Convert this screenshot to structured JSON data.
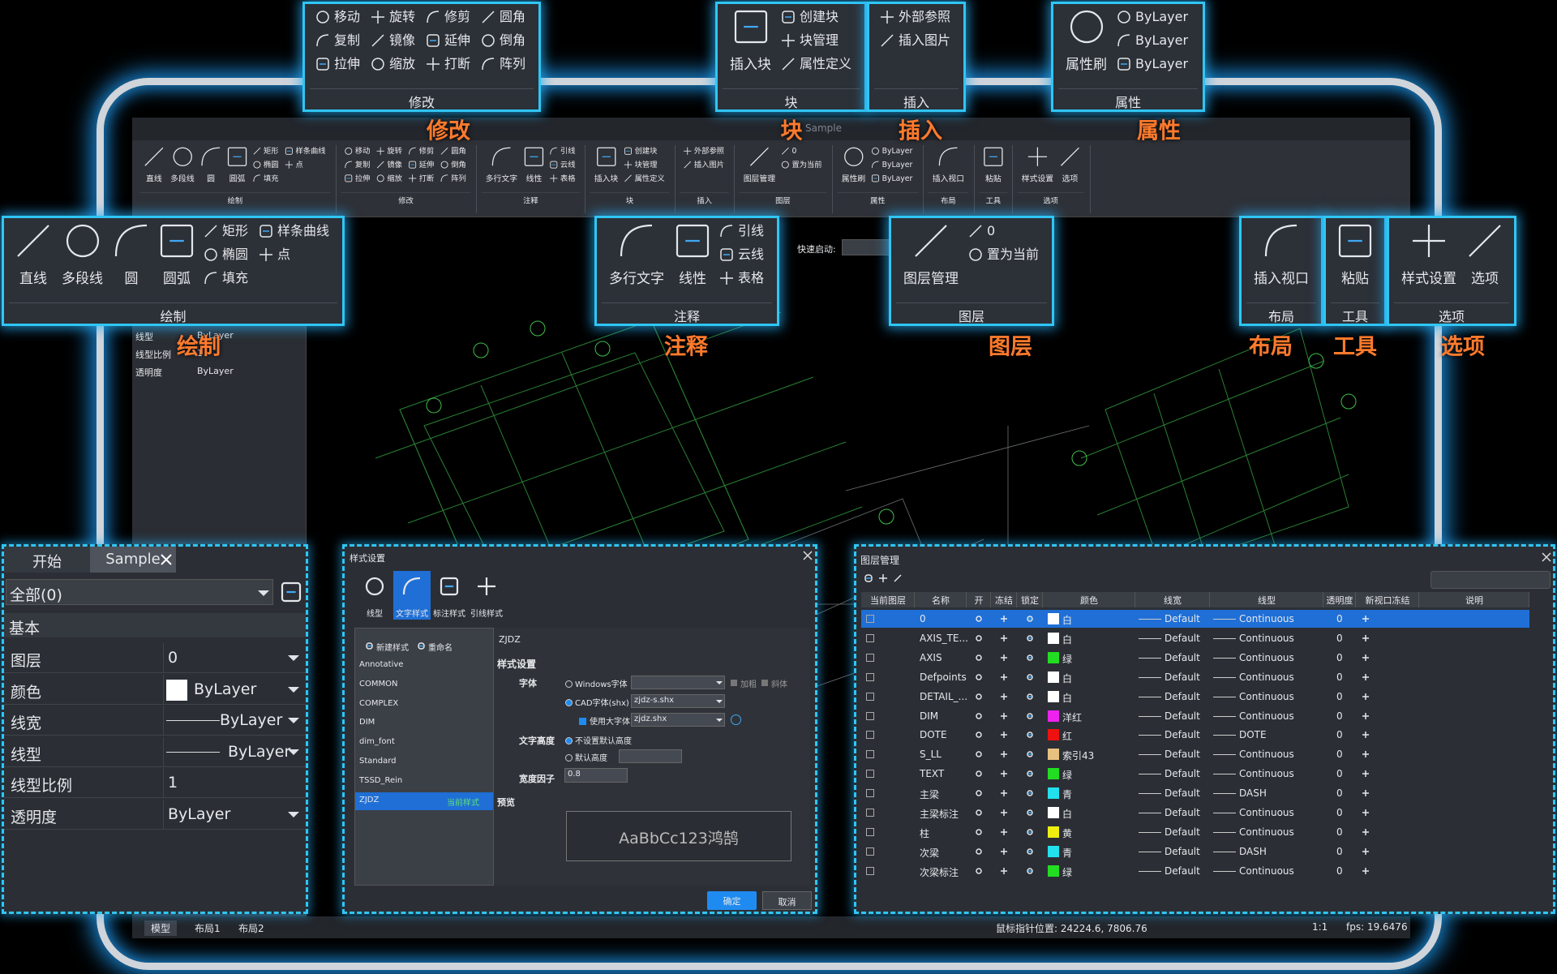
{
  "window": {
    "title": "Sample",
    "quick_launch": "快速启动:"
  },
  "ribbon": [
    {
      "title": "绘制",
      "large": [
        "直线",
        "多段线",
        "圆",
        "圆弧"
      ],
      "small": [
        "矩形",
        "椭圆",
        "填充",
        "样条曲线",
        "点"
      ]
    },
    {
      "title": "修改",
      "large": [],
      "small": [
        "移动",
        "复制",
        "拉伸",
        "旋转",
        "镜像",
        "缩放",
        "修剪",
        "延伸",
        "打断",
        "圆角",
        "倒角",
        "阵列"
      ]
    },
    {
      "title": "注释",
      "large": [
        "多行文字",
        "线性"
      ],
      "small": [
        "引线",
        "云线",
        "表格"
      ]
    },
    {
      "title": "块",
      "large": [
        "插入块"
      ],
      "small": [
        "创建块",
        "块管理",
        "属性定义"
      ]
    },
    {
      "title": "插入",
      "large": [],
      "small": [
        "外部参照",
        "插入图片"
      ]
    },
    {
      "title": "图层",
      "large": [
        "图层管理"
      ],
      "small": [
        "0",
        "置为当前"
      ]
    },
    {
      "title": "属性",
      "large": [
        "属性刷"
      ],
      "small": [
        "ByLayer",
        "ByLayer",
        "ByLayer"
      ]
    },
    {
      "title": "布局",
      "large": [
        "插入视口"
      ],
      "small": []
    },
    {
      "title": "工具",
      "large": [
        "粘贴"
      ],
      "small": []
    },
    {
      "title": "选项",
      "large": [
        "样式设置",
        "选项"
      ],
      "small": []
    }
  ],
  "properties": {
    "tabs": [
      "开始",
      "Sample"
    ],
    "filter": "全部(0)",
    "section": "基本",
    "rows": [
      [
        "图层",
        "0"
      ],
      [
        "颜色",
        "ByLayer"
      ],
      [
        "线宽",
        "ByLayer"
      ],
      [
        "线型",
        "ByLayer"
      ],
      [
        "线型比例",
        1
      ],
      [
        "透明度",
        "ByLayer"
      ]
    ]
  },
  "style_dialog": {
    "title": "样式设置",
    "tabs": [
      "线型",
      "文字样式",
      "标注样式",
      "引线样式"
    ],
    "actions": [
      "新建样式",
      "重命名"
    ],
    "styles": [
      "Annotative",
      "COMMON",
      "COMPLEX",
      "DIM",
      "dim_font",
      "Standard",
      "TSSD_Rein",
      "ZJDZ"
    ],
    "current_badge": "当前样式",
    "current": "ZJDZ",
    "section": "样式设置",
    "font_label": "字体",
    "windows_font": "Windows字体",
    "bold": "加粗",
    "italic": "斜体",
    "cad_font": "CAD字体(shx)",
    "cad_font_value": "zjdz-s.shx",
    "bigfont": "使用大字体",
    "bigfont_value": "zjdz.shx",
    "height_label": "文字高度",
    "no_default_height": "不设置默认高度",
    "default_height": "默认高度",
    "width_label": "宽度因子",
    "width_value": 0.8,
    "preview_label": "预览",
    "preview": "AaBbCc123鸿鹄",
    "ok": "确定",
    "cancel": "取消"
  },
  "layer_manager": {
    "title": "图层管理",
    "columns": [
      "当前图层",
      "名称",
      "开",
      "冻结",
      "锁定",
      "颜色",
      "线宽",
      "线型",
      "透明度",
      "新视口冻结",
      "说明"
    ],
    "rows": [
      {
        "name": "0",
        "color_name": "白",
        "color": "#ffffff",
        "lineweight": "Default",
        "linetype": "Continuous",
        "transparency": 0
      },
      {
        "name": "AXIS_TE...",
        "color_name": "白",
        "color": "#ffffff",
        "lineweight": "Default",
        "linetype": "Continuous",
        "transparency": 0
      },
      {
        "name": "AXIS",
        "color_name": "绿",
        "color": "#22dd22",
        "lineweight": "Default",
        "linetype": "Continuous",
        "transparency": 0
      },
      {
        "name": "Defpoints",
        "color_name": "白",
        "color": "#ffffff",
        "lineweight": "Default",
        "linetype": "Continuous",
        "transparency": 0
      },
      {
        "name": "DETAIL_...",
        "color_name": "白",
        "color": "#ffffff",
        "lineweight": "Default",
        "linetype": "Continuous",
        "transparency": 0
      },
      {
        "name": "DIM",
        "color_name": "洋红",
        "color": "#ee22ee",
        "lineweight": "Default",
        "linetype": "Continuous",
        "transparency": 0
      },
      {
        "name": "DOTE",
        "color_name": "红",
        "color": "#ee1111",
        "lineweight": "Default",
        "linetype": "DOTE",
        "transparency": 0
      },
      {
        "name": "S_LL",
        "color_name": "索引43",
        "color": "#e8c080",
        "lineweight": "Default",
        "linetype": "Continuous",
        "transparency": 0
      },
      {
        "name": "TEXT",
        "color_name": "绿",
        "color": "#22dd22",
        "lineweight": "Default",
        "linetype": "Continuous",
        "transparency": 0
      },
      {
        "name": "主梁",
        "color_name": "青",
        "color": "#22e0ee",
        "lineweight": "Default",
        "linetype": "DASH",
        "transparency": 0
      },
      {
        "name": "主梁标注",
        "color_name": "白",
        "color": "#ffffff",
        "lineweight": "Default",
        "linetype": "Continuous",
        "transparency": 0
      },
      {
        "name": "柱",
        "color_name": "黄",
        "color": "#eeee11",
        "lineweight": "Default",
        "linetype": "Continuous",
        "transparency": 0
      },
      {
        "name": "次梁",
        "color_name": "青",
        "color": "#22e0ee",
        "lineweight": "Default",
        "linetype": "DASH",
        "transparency": 0
      },
      {
        "name": "次梁标注",
        "color_name": "绿",
        "color": "#22dd22",
        "lineweight": "Default",
        "linetype": "Continuous",
        "transparency": 0
      }
    ]
  },
  "status_bar": {
    "tabs": [
      "模型",
      "布局1",
      "布局2"
    ],
    "pointer": "鼠标指针位置: 24224.6, 7806.76",
    "scale": "1:1",
    "fps": "fps: 19.6476"
  }
}
